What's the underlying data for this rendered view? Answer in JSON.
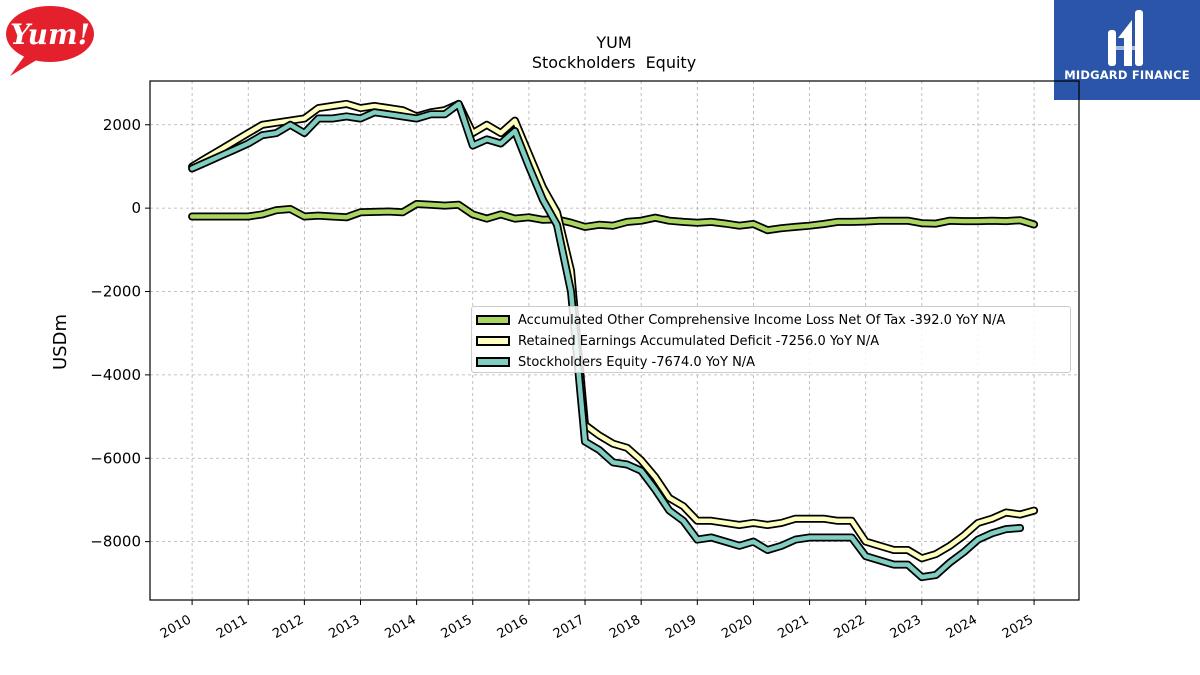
{
  "logos": {
    "yum": {
      "text": "Yum!",
      "color": "#e4202c"
    },
    "midgard": {
      "text": "MIDGARD FINANCE",
      "color": "#2a55a8"
    }
  },
  "chart_data": {
    "type": "line",
    "title": "YUM",
    "subtitle": "Stockholders  Equity",
    "xlabel": "",
    "ylabel": "USDm",
    "xlim": [
      2009.25,
      2025.8
    ],
    "ylim": [
      -9400,
      3050
    ],
    "yticks": [
      2000,
      0,
      -2000,
      -4000,
      -6000,
      -8000
    ],
    "ytick_labels": [
      "2000",
      "0",
      "−2000",
      "−4000",
      "−6000",
      "−8000"
    ],
    "xticks": [
      2010,
      2011,
      2012,
      2013,
      2014,
      2015,
      2016,
      2017,
      2018,
      2019,
      2020,
      2021,
      2022,
      2023,
      2024,
      2025
    ],
    "xtick_labels": [
      "2010",
      "2011",
      "2012",
      "2013",
      "2014",
      "2015",
      "2016",
      "2017",
      "2018",
      "2019",
      "2020",
      "2021",
      "2022",
      "2023",
      "2024",
      "2025"
    ],
    "grid": true,
    "legend_position": "center-right",
    "series": [
      {
        "name": "Accumulated Other Comprehensive Income Loss Net Of Tax",
        "legend_label": "Accumulated Other Comprehensive Income Loss Net Of Tax  -392.0 YoY N/A",
        "color": "#a9d560",
        "points": [
          [
            2010.0,
            -200
          ],
          [
            2010.25,
            -200
          ],
          [
            2010.5,
            -200
          ],
          [
            2010.75,
            -200
          ],
          [
            2011.0,
            -200
          ],
          [
            2011.25,
            -150
          ],
          [
            2011.5,
            -50
          ],
          [
            2011.75,
            -20
          ],
          [
            2012.0,
            -200
          ],
          [
            2012.25,
            -180
          ],
          [
            2012.5,
            -200
          ],
          [
            2012.75,
            -220
          ],
          [
            2013.0,
            -100
          ],
          [
            2013.25,
            -90
          ],
          [
            2013.5,
            -80
          ],
          [
            2013.75,
            -100
          ],
          [
            2014.0,
            100
          ],
          [
            2014.25,
            80
          ],
          [
            2014.5,
            60
          ],
          [
            2014.75,
            80
          ],
          [
            2015.0,
            -150
          ],
          [
            2015.25,
            -250
          ],
          [
            2015.5,
            -150
          ],
          [
            2015.75,
            -250
          ],
          [
            2016.0,
            -220
          ],
          [
            2016.25,
            -280
          ],
          [
            2016.5,
            -270
          ],
          [
            2016.75,
            -350
          ],
          [
            2017.0,
            -450
          ],
          [
            2017.25,
            -400
          ],
          [
            2017.5,
            -420
          ],
          [
            2017.75,
            -330
          ],
          [
            2018.0,
            -300
          ],
          [
            2018.25,
            -230
          ],
          [
            2018.5,
            -300
          ],
          [
            2018.75,
            -330
          ],
          [
            2019.0,
            -350
          ],
          [
            2019.25,
            -330
          ],
          [
            2019.5,
            -370
          ],
          [
            2019.75,
            -420
          ],
          [
            2020.0,
            -380
          ],
          [
            2020.25,
            -530
          ],
          [
            2020.5,
            -480
          ],
          [
            2020.75,
            -450
          ],
          [
            2021.0,
            -420
          ],
          [
            2021.25,
            -380
          ],
          [
            2021.5,
            -330
          ],
          [
            2021.75,
            -330
          ],
          [
            2022.0,
            -320
          ],
          [
            2022.25,
            -300
          ],
          [
            2022.5,
            -300
          ],
          [
            2022.75,
            -300
          ],
          [
            2023.0,
            -360
          ],
          [
            2023.25,
            -370
          ],
          [
            2023.5,
            -300
          ],
          [
            2023.75,
            -310
          ],
          [
            2024.0,
            -310
          ],
          [
            2024.25,
            -300
          ],
          [
            2024.5,
            -310
          ],
          [
            2024.75,
            -290
          ],
          [
            2025.0,
            -392
          ]
        ]
      },
      {
        "name": "Retained Earnings Accumulated Deficit",
        "legend_label": "Retained Earnings Accumulated Deficit  -7256.0 YoY N/A",
        "color": "#ffffbf",
        "points": [
          [
            2010.0,
            1000
          ],
          [
            2010.25,
            1200
          ],
          [
            2010.5,
            1400
          ],
          [
            2010.75,
            1600
          ],
          [
            2011.0,
            1800
          ],
          [
            2011.25,
            2000
          ],
          [
            2011.5,
            2050
          ],
          [
            2011.75,
            2100
          ],
          [
            2012.0,
            2150
          ],
          [
            2012.25,
            2400
          ],
          [
            2012.5,
            2450
          ],
          [
            2012.75,
            2500
          ],
          [
            2013.0,
            2400
          ],
          [
            2013.25,
            2450
          ],
          [
            2013.5,
            2400
          ],
          [
            2013.75,
            2350
          ],
          [
            2014.0,
            2200
          ],
          [
            2014.25,
            2300
          ],
          [
            2014.5,
            2350
          ],
          [
            2014.75,
            2500
          ],
          [
            2015.0,
            1800
          ],
          [
            2015.25,
            2000
          ],
          [
            2015.5,
            1800
          ],
          [
            2015.75,
            2100
          ],
          [
            2016.0,
            1300
          ],
          [
            2016.25,
            500
          ],
          [
            2016.5,
            -100
          ],
          [
            2016.75,
            -1500
          ],
          [
            2017.0,
            -5200
          ],
          [
            2017.25,
            -5450
          ],
          [
            2017.5,
            -5650
          ],
          [
            2017.75,
            -5750
          ],
          [
            2018.0,
            -6050
          ],
          [
            2018.25,
            -6450
          ],
          [
            2018.5,
            -6950
          ],
          [
            2018.75,
            -7150
          ],
          [
            2019.0,
            -7500
          ],
          [
            2019.25,
            -7500
          ],
          [
            2019.5,
            -7550
          ],
          [
            2019.75,
            -7600
          ],
          [
            2020.0,
            -7550
          ],
          [
            2020.25,
            -7600
          ],
          [
            2020.5,
            -7550
          ],
          [
            2020.75,
            -7450
          ],
          [
            2021.0,
            -7450
          ],
          [
            2021.25,
            -7450
          ],
          [
            2021.5,
            -7500
          ],
          [
            2021.75,
            -7500
          ],
          [
            2022.0,
            -8000
          ],
          [
            2022.25,
            -8100
          ],
          [
            2022.5,
            -8200
          ],
          [
            2022.75,
            -8200
          ],
          [
            2023.0,
            -8400
          ],
          [
            2023.25,
            -8300
          ],
          [
            2023.5,
            -8100
          ],
          [
            2023.75,
            -7850
          ],
          [
            2024.0,
            -7550
          ],
          [
            2024.25,
            -7450
          ],
          [
            2024.5,
            -7300
          ],
          [
            2024.75,
            -7350
          ],
          [
            2025.0,
            -7256
          ]
        ]
      },
      {
        "name": "Stockholders Equity",
        "legend_label": "Stockholders Equity  -7674.0 YoY N/A",
        "color": "#80cdc1",
        "points": [
          [
            2010.0,
            950
          ],
          [
            2010.25,
            1100
          ],
          [
            2010.5,
            1250
          ],
          [
            2010.75,
            1400
          ],
          [
            2011.0,
            1550
          ],
          [
            2011.25,
            1750
          ],
          [
            2011.5,
            1800
          ],
          [
            2011.75,
            2000
          ],
          [
            2012.0,
            1800
          ],
          [
            2012.25,
            2150
          ],
          [
            2012.5,
            2150
          ],
          [
            2012.75,
            2200
          ],
          [
            2013.0,
            2150
          ],
          [
            2013.25,
            2300
          ],
          [
            2013.5,
            2250
          ],
          [
            2013.75,
            2200
          ],
          [
            2014.0,
            2150
          ],
          [
            2014.25,
            2250
          ],
          [
            2014.5,
            2250
          ],
          [
            2014.75,
            2500
          ],
          [
            2015.0,
            1500
          ],
          [
            2015.25,
            1650
          ],
          [
            2015.5,
            1550
          ],
          [
            2015.75,
            1850
          ],
          [
            2016.0,
            1000
          ],
          [
            2016.25,
            200
          ],
          [
            2016.5,
            -400
          ],
          [
            2016.75,
            -2000
          ],
          [
            2017.0,
            -5600
          ],
          [
            2017.25,
            -5800
          ],
          [
            2017.5,
            -6100
          ],
          [
            2017.75,
            -6150
          ],
          [
            2018.0,
            -6300
          ],
          [
            2018.25,
            -6750
          ],
          [
            2018.5,
            -7250
          ],
          [
            2018.75,
            -7500
          ],
          [
            2019.0,
            -7950
          ],
          [
            2019.25,
            -7900
          ],
          [
            2019.5,
            -8000
          ],
          [
            2019.75,
            -8100
          ],
          [
            2020.0,
            -8000
          ],
          [
            2020.25,
            -8200
          ],
          [
            2020.5,
            -8100
          ],
          [
            2020.75,
            -7950
          ],
          [
            2021.0,
            -7900
          ],
          [
            2021.25,
            -7900
          ],
          [
            2021.5,
            -7900
          ],
          [
            2021.75,
            -7900
          ],
          [
            2022.0,
            -8350
          ],
          [
            2022.25,
            -8450
          ],
          [
            2022.5,
            -8550
          ],
          [
            2022.75,
            -8550
          ],
          [
            2023.0,
            -8850
          ],
          [
            2023.25,
            -8800
          ],
          [
            2023.5,
            -8500
          ],
          [
            2023.75,
            -8250
          ],
          [
            2024.0,
            -7950
          ],
          [
            2024.25,
            -7800
          ],
          [
            2024.5,
            -7700
          ],
          [
            2024.75,
            -7674
          ]
        ]
      }
    ]
  }
}
